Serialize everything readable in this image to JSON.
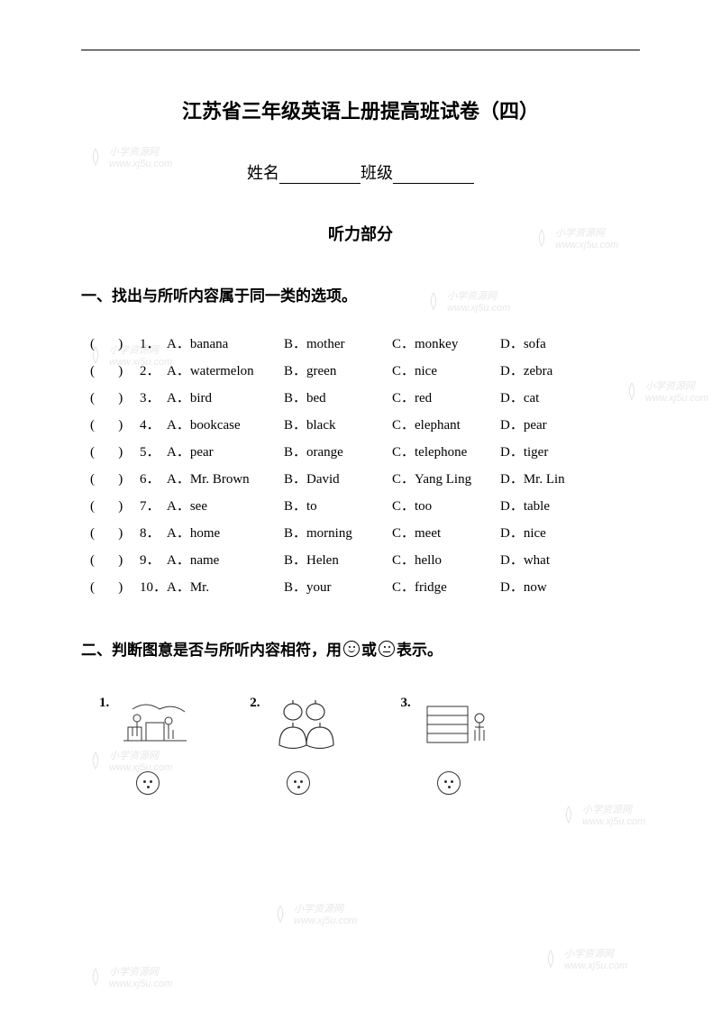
{
  "page": {
    "title": "江苏省三年级英语上册提高班试卷（四）",
    "name_label": "姓名",
    "class_label": "班级",
    "listening_header": "听力部分"
  },
  "section1": {
    "instruction": "一、找出与所听内容属于同一类的选项。",
    "paren": "(       )",
    "rows": [
      {
        "n": "1．",
        "a": "A．banana",
        "b": "B．mother",
        "c": "C．monkey",
        "d": "D．sofa"
      },
      {
        "n": "2．",
        "a": "A．watermelon",
        "b": "B．green",
        "c": "C．nice",
        "d": "D．zebra"
      },
      {
        "n": "3．",
        "a": "A．bird",
        "b": "B．bed",
        "c": "C．red",
        "d": "D．cat"
      },
      {
        "n": "4．",
        "a": "A．bookcase",
        "b": "B．black",
        "c": "C．elephant",
        "d": "D．pear"
      },
      {
        "n": "5．",
        "a": "A．pear",
        "b": "B．orange",
        "c": "C．telephone",
        "d": "D．tiger"
      },
      {
        "n": "6．",
        "a": "A．Mr. Brown",
        "b": "B．David",
        "c": "C．Yang Ling",
        "d": "D．Mr. Lin"
      },
      {
        "n": "7．",
        "a": "A．see",
        "b": "B．to",
        "c": "C．too",
        "d": "D．table"
      },
      {
        "n": "8．",
        "a": "A．home",
        "b": "B．morning",
        "c": "C．meet",
        "d": "D．nice"
      },
      {
        "n": "9．",
        "a": "A．name",
        "b": "B．Helen",
        "c": "C．hello",
        "d": "D．what"
      },
      {
        "n": "10．",
        "a": "A．Mr.",
        "b": "B．your",
        "c": "C．fridge",
        "d": "D．now"
      }
    ]
  },
  "section2": {
    "instruction_pre": "二、判断图意是否与所听内容相符，用",
    "instruction_mid": "或",
    "instruction_post": "表示。",
    "items": [
      {
        "n": "1."
      },
      {
        "n": "2."
      },
      {
        "n": "3."
      }
    ]
  },
  "watermark": {
    "text": "小学资源网",
    "url": "www.xj5u.com"
  }
}
